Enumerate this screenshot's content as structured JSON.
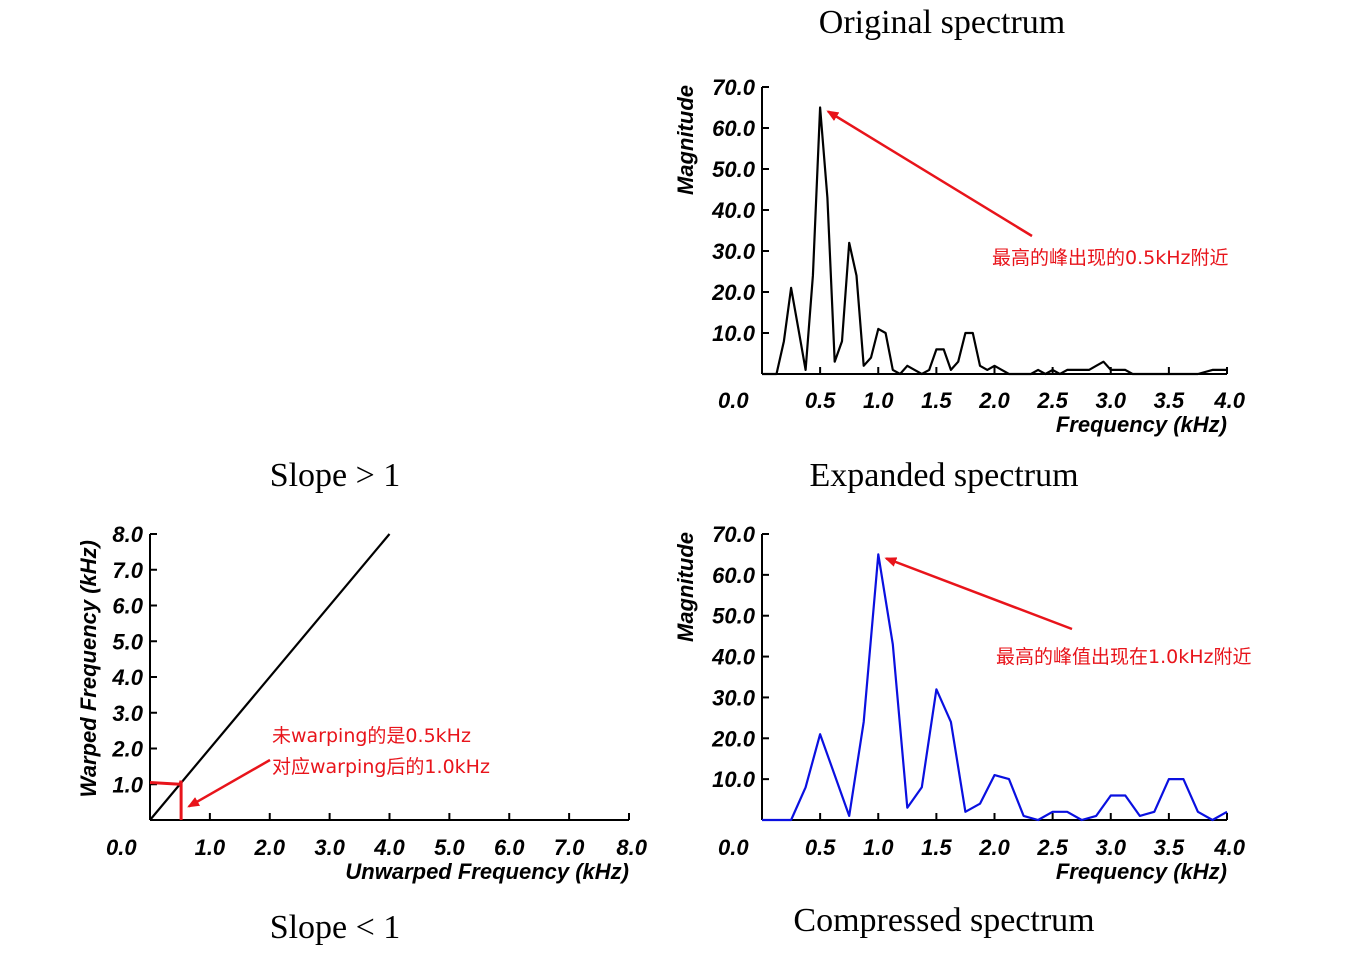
{
  "captions": {
    "top_right_title": "Original spectrum",
    "slope_gt": "Slope > 1",
    "mid_right_title": "Expanded spectrum",
    "slope_lt": "Slope < 1",
    "bottom_right_title": "Compressed spectrum"
  },
  "colors": {
    "red": "#e8141b",
    "blue": "#0a10e0",
    "black": "#000000"
  },
  "chart_data": [
    {
      "id": "original",
      "type": "line",
      "xlabel": "Frequency (kHz)",
      "ylabel": "Magnitude",
      "xlim": [
        0,
        4.0
      ],
      "ylim": [
        0,
        70
      ],
      "x_ticks": [
        "0.0",
        "0.5",
        "1.0",
        "1.5",
        "2.0",
        "2.5",
        "3.0",
        "3.5",
        "4.0"
      ],
      "y_ticks": [
        "10.0",
        "20.0",
        "30.0",
        "40.0",
        "50.0",
        "60.0",
        "70.0"
      ],
      "series": [
        {
          "color": "#000000",
          "x": [
            0.0,
            0.125,
            0.188,
            0.25,
            0.313,
            0.375,
            0.438,
            0.5,
            0.563,
            0.625,
            0.688,
            0.75,
            0.813,
            0.875,
            0.938,
            1.0,
            1.063,
            1.125,
            1.188,
            1.25,
            1.313,
            1.375,
            1.438,
            1.5,
            1.563,
            1.625,
            1.688,
            1.75,
            1.813,
            1.875,
            1.938,
            2.0,
            2.063,
            2.125,
            2.188,
            2.25,
            2.313,
            2.375,
            2.438,
            2.5,
            2.563,
            2.625,
            2.688,
            2.75,
            2.813,
            2.875,
            2.938,
            3.0,
            3.063,
            3.125,
            3.188,
            3.25,
            3.375,
            3.5,
            3.625,
            3.75,
            3.875,
            4.0
          ],
          "y": [
            0,
            0,
            8,
            21,
            11,
            1,
            24,
            65,
            43,
            3,
            8,
            32,
            24,
            2,
            4,
            11,
            10,
            1,
            0,
            2,
            1,
            0,
            1,
            6,
            6,
            1,
            3,
            10,
            10,
            2,
            1,
            2,
            1,
            0,
            0,
            0,
            0,
            1,
            0,
            1,
            0,
            1,
            1,
            1,
            1,
            2,
            3,
            1,
            1,
            1,
            0,
            0,
            0,
            0,
            0,
            0,
            1,
            1
          ]
        }
      ],
      "annotation": {
        "text": "最高的峰出现的0.5kHz附近",
        "arrow_to": [
          0.5,
          65
        ]
      }
    },
    {
      "id": "warp",
      "type": "line",
      "xlabel": "Unwarped Frequency (kHz)",
      "ylabel": "Warped Frequency (kHz)",
      "xlim": [
        0,
        8.0
      ],
      "ylim": [
        0,
        8.0
      ],
      "x_ticks": [
        "0.0",
        "1.0",
        "2.0",
        "3.0",
        "4.0",
        "5.0",
        "6.0",
        "7.0",
        "8.0"
      ],
      "y_ticks": [
        "1.0",
        "2.0",
        "3.0",
        "4.0",
        "5.0",
        "6.0",
        "7.0",
        "8.0"
      ],
      "series": [
        {
          "color": "#000000",
          "x": [
            0,
            4.0
          ],
          "y": [
            0,
            8.0
          ]
        },
        {
          "color": "#e8141b",
          "x": [
            0,
            0.5,
            0.52
          ],
          "y": [
            1.05,
            1.0,
            1.1
          ]
        },
        {
          "color": "#e8141b",
          "x": [
            0.52,
            0.52
          ],
          "y": [
            1.1,
            0
          ]
        }
      ],
      "annotation": {
        "text_lines": [
          "未warping的是0.5kHz",
          "对应warping后的1.0kHz"
        ],
        "arrow_to": [
          0.65,
          0.1
        ]
      }
    },
    {
      "id": "expanded",
      "type": "line",
      "xlabel": "Frequency (kHz)",
      "ylabel": "Magnitude",
      "xlim": [
        0,
        4.0
      ],
      "ylim": [
        0,
        70
      ],
      "x_ticks": [
        "0.0",
        "0.5",
        "1.0",
        "1.5",
        "2.0",
        "2.5",
        "3.0",
        "3.5",
        "4.0"
      ],
      "y_ticks": [
        "10.0",
        "20.0",
        "30.0",
        "40.0",
        "50.0",
        "60.0",
        "70.0"
      ],
      "series": [
        {
          "color": "#0a10e0",
          "x": [
            0.0,
            0.25,
            0.375,
            0.5,
            0.625,
            0.75,
            0.875,
            1.0,
            1.125,
            1.25,
            1.375,
            1.5,
            1.625,
            1.75,
            1.875,
            2.0,
            2.125,
            2.25,
            2.375,
            2.5,
            2.625,
            2.75,
            2.875,
            3.0,
            3.125,
            3.25,
            3.375,
            3.5,
            3.625,
            3.75,
            3.875,
            4.0
          ],
          "y": [
            0,
            0,
            8,
            21,
            11,
            1,
            24,
            65,
            43,
            3,
            8,
            32,
            24,
            2,
            4,
            11,
            10,
            1,
            0,
            2,
            2,
            0,
            1,
            6,
            6,
            1,
            2,
            10,
            10,
            2,
            0,
            2
          ]
        }
      ],
      "annotation": {
        "text": "最高的峰值出现在1.0kHz附近",
        "arrow_to": [
          1.0,
          65
        ]
      }
    }
  ]
}
